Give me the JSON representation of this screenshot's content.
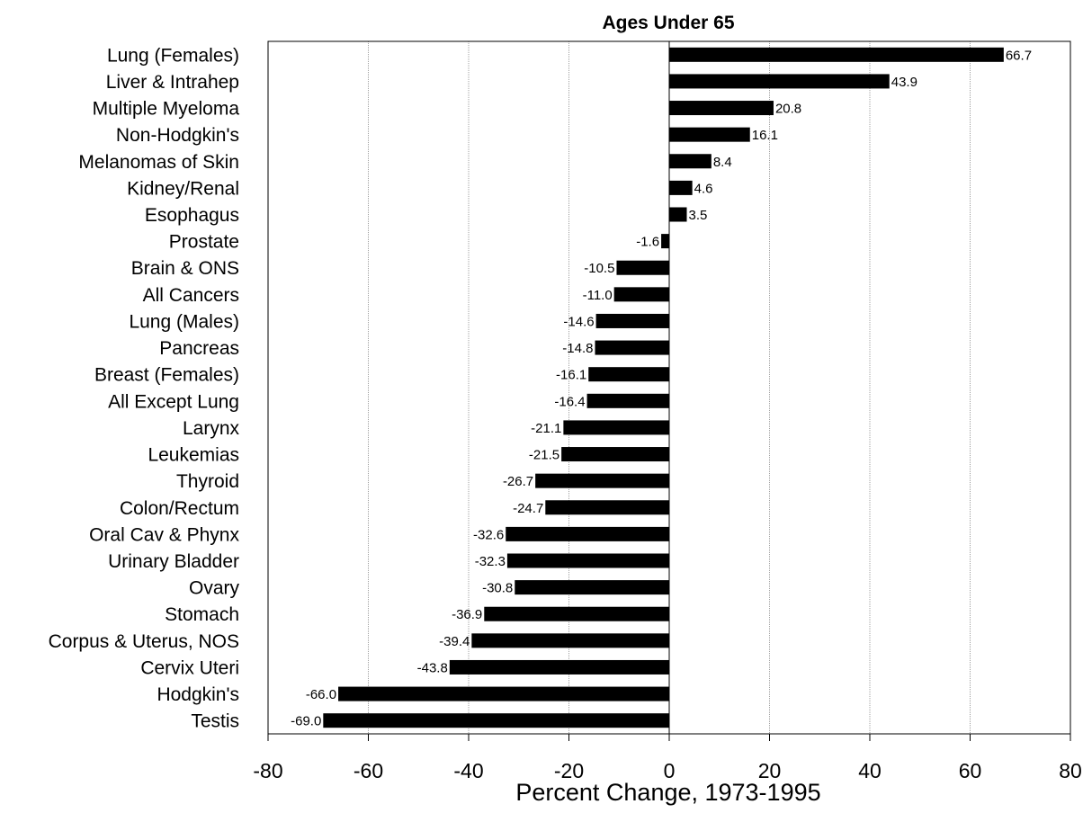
{
  "chart_data": {
    "type": "bar",
    "orientation": "horizontal",
    "title": "Ages Under 65",
    "xlabel": "Percent Change, 1973-1995",
    "ylabel": "",
    "xlim": [
      -80,
      80
    ],
    "xticks": [
      -80,
      -60,
      -40,
      -20,
      0,
      20,
      40,
      60,
      80
    ],
    "grid": "vertical",
    "bar_color": "#000000",
    "categories": [
      "Lung (Females)",
      "Liver & Intrahep",
      "Multiple Myeloma",
      "Non-Hodgkin's",
      "Melanomas of Skin",
      "Kidney/Renal",
      "Esophagus",
      "Prostate",
      "Brain & ONS",
      "All Cancers",
      "Lung (Males)",
      "Pancreas",
      "Breast (Females)",
      "All Except Lung",
      "Larynx",
      "Leukemias",
      "Thyroid",
      "Colon/Rectum",
      "Oral Cav & Phynx",
      "Urinary Bladder",
      "Ovary",
      "Stomach",
      "Corpus & Uterus, NOS",
      "Cervix Uteri",
      "Hodgkin's",
      "Testis"
    ],
    "values": [
      66.7,
      43.9,
      20.8,
      16.1,
      8.4,
      4.6,
      3.5,
      -1.6,
      -10.5,
      -11.0,
      -14.6,
      -14.8,
      -16.1,
      -16.4,
      -21.1,
      -21.5,
      -26.7,
      -24.7,
      -32.6,
      -32.3,
      -30.8,
      -36.9,
      -39.4,
      -43.8,
      -66.0,
      -69.0
    ],
    "value_labels": [
      "66.7",
      "43.9",
      "20.8",
      "16.1",
      "8.4",
      "4.6",
      "3.5",
      "-1.6",
      "-10.5",
      "-11.0",
      "-14.6",
      "-14.8",
      "-16.1",
      "-16.4",
      "-21.1",
      "-21.5",
      "-26.7",
      "-24.7",
      "-32.6",
      "-32.3",
      "-30.8",
      "-36.9",
      "-39.4",
      "-43.8",
      "-66.0",
      "-69.0"
    ],
    "tick_labels": [
      "-80",
      "-60",
      "-40",
      "-20",
      "0",
      "20",
      "40",
      "60",
      "80"
    ]
  }
}
